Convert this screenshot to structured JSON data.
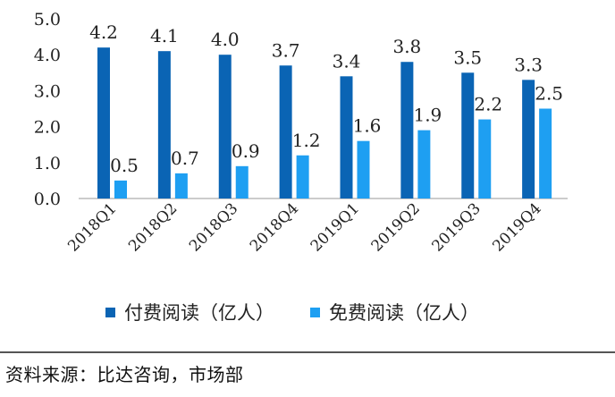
{
  "chart_data": {
    "type": "bar",
    "categories": [
      "2018Q1",
      "2018Q2",
      "2018Q3",
      "2018Q4",
      "2019Q1",
      "2019Q2",
      "2019Q3",
      "2019Q4"
    ],
    "series": [
      {
        "name": "付费阅读（亿人）",
        "color": "#0a64b4",
        "values": [
          4.2,
          4.1,
          4.0,
          3.7,
          3.4,
          3.8,
          3.5,
          3.3
        ],
        "labels": [
          "4.2",
          "4.1",
          "4.0",
          "3.7",
          "3.4",
          "3.8",
          "3.5",
          "3.3"
        ]
      },
      {
        "name": "免费阅读（亿人）",
        "color": "#1e9ff2",
        "values": [
          0.5,
          0.7,
          0.9,
          1.2,
          1.6,
          1.9,
          2.2,
          2.5
        ],
        "labels": [
          "0.5",
          "0.7",
          "0.9",
          "1.2",
          "1.6",
          "1.9",
          "2.2",
          "2.5"
        ]
      }
    ],
    "ylim": [
      0,
      5
    ],
    "yticks": [
      "0.0",
      "1.0",
      "2.0",
      "3.0",
      "4.0",
      "5.0"
    ],
    "legend_position": "bottom"
  },
  "source": "资料来源：比达咨询，市场部"
}
